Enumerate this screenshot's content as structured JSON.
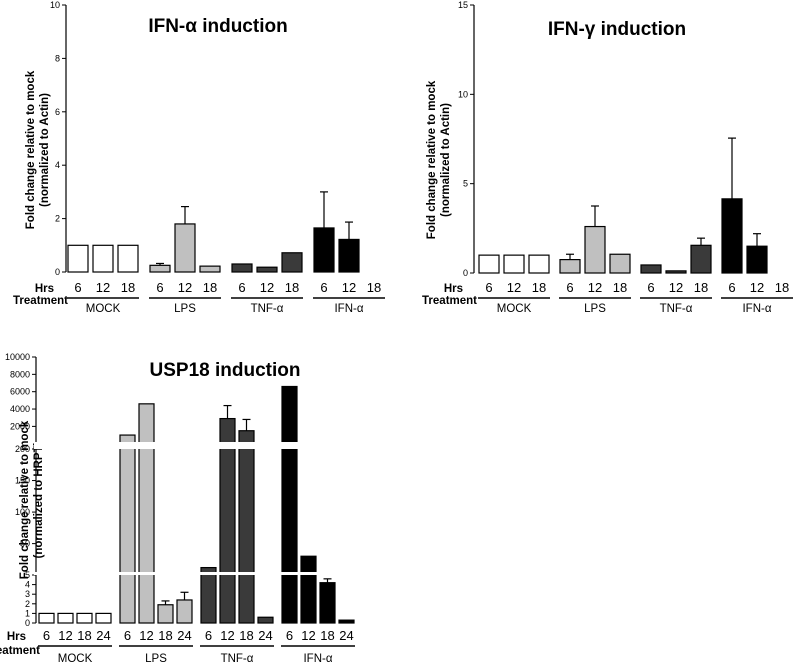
{
  "chart_data": [
    {
      "type": "bar",
      "title": "IFN-α induction",
      "ylabel": "Fold change relative to mock (normalized to Actin)",
      "ylim": [
        0,
        10
      ],
      "yticks": [
        0,
        2,
        4,
        6,
        8,
        10
      ],
      "row_labels": [
        "Hrs",
        "Treatment"
      ],
      "groups": [
        {
          "name": "MOCK",
          "color": "#ffffff",
          "bars": [
            {
              "hrs": "6",
              "value": 1.0
            },
            {
              "hrs": "12",
              "value": 1.0
            },
            {
              "hrs": "18",
              "value": 1.0
            }
          ]
        },
        {
          "name": "LPS",
          "color": "#c0c0c0",
          "bars": [
            {
              "hrs": "6",
              "value": 0.25,
              "err": 0.07
            },
            {
              "hrs": "12",
              "value": 1.8,
              "err": 0.65
            },
            {
              "hrs": "18",
              "value": 0.22
            }
          ]
        },
        {
          "name": "TNF-α",
          "color": "#3a3a3a",
          "bars": [
            {
              "hrs": "6",
              "value": 0.3
            },
            {
              "hrs": "12",
              "value": 0.18
            },
            {
              "hrs": "18",
              "value": 0.72
            }
          ]
        },
        {
          "name": "IFN-α",
          "color": "#000000",
          "bars": [
            {
              "hrs": "6",
              "value": 1.65,
              "err": 1.35
            },
            {
              "hrs": "12",
              "value": 1.22,
              "err": 0.65
            },
            {
              "hrs": "18",
              "value": 0
            }
          ]
        }
      ]
    },
    {
      "type": "bar",
      "title": "IFN-γ induction",
      "ylabel": "Fold change relative to mock (normalized to Actin)",
      "ylim": [
        0,
        15
      ],
      "yticks": [
        0,
        5,
        10,
        15
      ],
      "row_labels": [
        "Hrs",
        "Treatment"
      ],
      "groups": [
        {
          "name": "MOCK",
          "color": "#ffffff",
          "bars": [
            {
              "hrs": "6",
              "value": 1.0
            },
            {
              "hrs": "12",
              "value": 1.0
            },
            {
              "hrs": "18",
              "value": 1.0
            }
          ]
        },
        {
          "name": "LPS",
          "color": "#c0c0c0",
          "bars": [
            {
              "hrs": "6",
              "value": 0.75,
              "err": 0.3
            },
            {
              "hrs": "12",
              "value": 2.6,
              "err": 1.15
            },
            {
              "hrs": "18",
              "value": 1.05
            }
          ]
        },
        {
          "name": "TNF-α",
          "color": "#3a3a3a",
          "bars": [
            {
              "hrs": "6",
              "value": 0.45
            },
            {
              "hrs": "12",
              "value": 0.12
            },
            {
              "hrs": "18",
              "value": 1.55,
              "err": 0.4
            }
          ]
        },
        {
          "name": "IFN-α",
          "color": "#000000",
          "bars": [
            {
              "hrs": "6",
              "value": 4.15,
              "err": 3.4
            },
            {
              "hrs": "12",
              "value": 1.5,
              "err": 0.7
            },
            {
              "hrs": "18",
              "value": 0
            }
          ]
        }
      ]
    },
    {
      "type": "bar",
      "title": "USP18 induction",
      "ylabel": "Fold change relative to mock (normalized to HRPT)",
      "y_scale": "broken axis",
      "y_segments": [
        {
          "range": [
            0,
            5
          ],
          "ticks": [
            0,
            1,
            2,
            3,
            4,
            5
          ]
        },
        {
          "range": [
            5,
            200
          ],
          "ticks": [
            50,
            100,
            150,
            200
          ]
        },
        {
          "range": [
            200,
            10000
          ],
          "ticks": [
            2000,
            4000,
            6000,
            8000,
            10000
          ]
        }
      ],
      "row_labels": [
        "Hrs",
        "Treatment"
      ],
      "groups": [
        {
          "name": "MOCK",
          "color": "#ffffff",
          "bars": [
            {
              "hrs": "6",
              "value": 1.0
            },
            {
              "hrs": "12",
              "value": 1.0
            },
            {
              "hrs": "18",
              "value": 1.0
            },
            {
              "hrs": "24",
              "value": 1.0
            }
          ]
        },
        {
          "name": "LPS",
          "color": "#c0c0c0",
          "bars": [
            {
              "hrs": "6",
              "value": 1000
            },
            {
              "hrs": "12",
              "value": 4600
            },
            {
              "hrs": "18",
              "value": 1.9,
              "err": 0.4
            },
            {
              "hrs": "24",
              "value": 2.4,
              "err": 0.8
            }
          ]
        },
        {
          "name": "TNF-α",
          "color": "#3a3a3a",
          "bars": [
            {
              "hrs": "6",
              "value": 12
            },
            {
              "hrs": "12",
              "value": 2900,
              "err": 1500
            },
            {
              "hrs": "18",
              "value": 1500,
              "err": 1300
            },
            {
              "hrs": "24",
              "value": 0.6
            }
          ]
        },
        {
          "name": "IFN-α",
          "color": "#000000",
          "bars": [
            {
              "hrs": "6",
              "value": 6600
            },
            {
              "hrs": "12",
              "value": 30
            },
            {
              "hrs": "18",
              "value": 4.2,
              "err": 0.4
            },
            {
              "hrs": "24",
              "value": 0.3
            }
          ]
        }
      ]
    }
  ]
}
